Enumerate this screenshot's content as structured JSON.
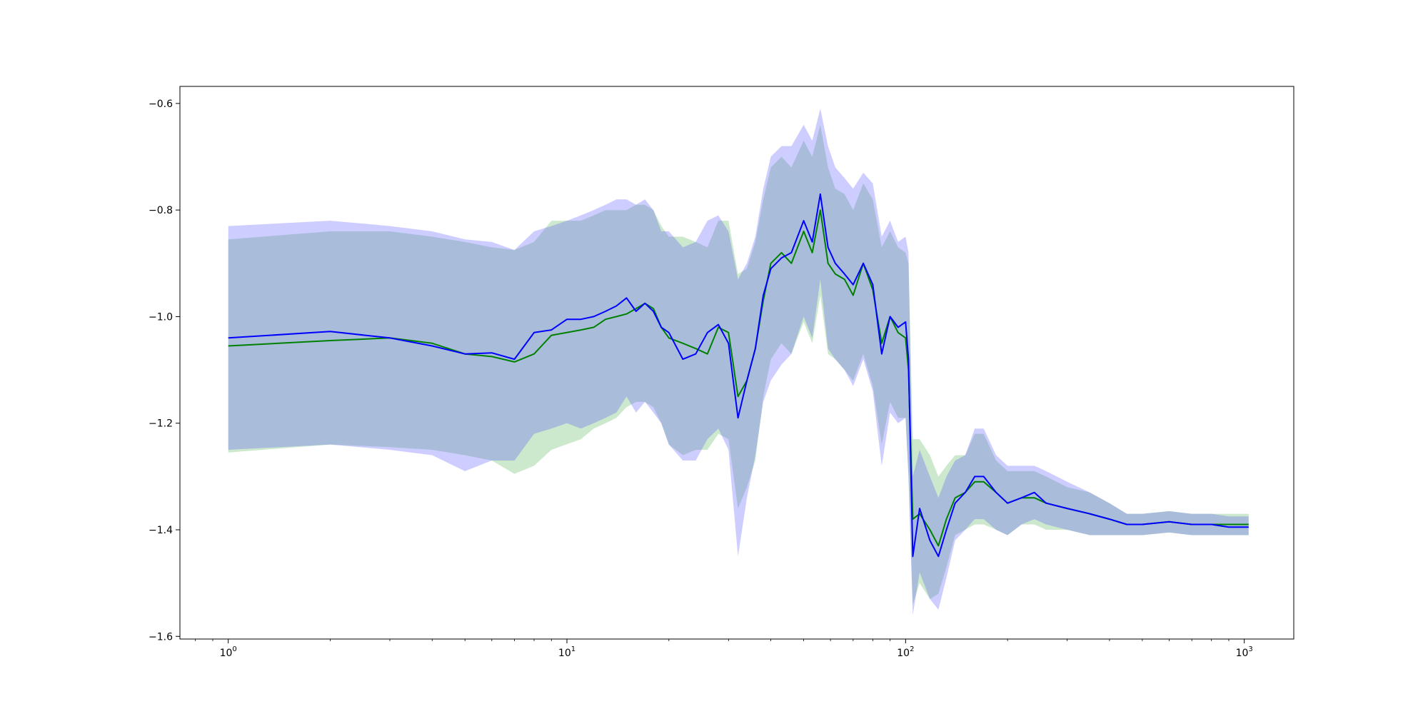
{
  "chart_data": {
    "type": "line",
    "title": "",
    "xlabel": "",
    "ylabel": "",
    "xscale": "log",
    "xlim": [
      0.72,
      1400
    ],
    "ylim": [
      -1.605,
      -0.568
    ],
    "grid": false,
    "legend": "none",
    "y_ticks": [
      {
        "value": -0.6,
        "label": "−0.6"
      },
      {
        "value": -0.8,
        "label": "−0.8"
      },
      {
        "value": -1.0,
        "label": "−1.0"
      },
      {
        "value": -1.2,
        "label": "−1.2"
      },
      {
        "value": -1.4,
        "label": "−1.4"
      },
      {
        "value": -1.6,
        "label": "−1.6"
      }
    ],
    "x_ticks": [
      {
        "value": 1,
        "base": "10",
        "exp": "0"
      },
      {
        "value": 10,
        "base": "10",
        "exp": "1"
      },
      {
        "value": 100,
        "base": "10",
        "exp": "2"
      },
      {
        "value": 1000,
        "base": "10",
        "exp": "3"
      }
    ],
    "series": [
      {
        "color": "#008000",
        "band_color": "#1a9a1a",
        "x": [
          1,
          2,
          3,
          4,
          5,
          6,
          7,
          8,
          9,
          11,
          12,
          13,
          14,
          15,
          16,
          17,
          18,
          19,
          20,
          22,
          24,
          26,
          28,
          30,
          32,
          34,
          36,
          38,
          40,
          43,
          46,
          50,
          53,
          56,
          59,
          62,
          66,
          70,
          75,
          80,
          85,
          90,
          95,
          100,
          102,
          105,
          110,
          118,
          125,
          132,
          140,
          150,
          160,
          170,
          185,
          200,
          220,
          240,
          260,
          300,
          350,
          400,
          450,
          500,
          600,
          700,
          800,
          900,
          1000,
          1030
        ],
        "y": [
          -1.055,
          -1.045,
          -1.04,
          -1.05,
          -1.07,
          -1.075,
          -1.085,
          -1.07,
          -1.035,
          -1.025,
          -1.02,
          -1.005,
          -1.0,
          -0.995,
          -0.985,
          -0.975,
          -0.985,
          -1.02,
          -1.04,
          -1.05,
          -1.06,
          -1.07,
          -1.02,
          -1.03,
          -1.15,
          -1.12,
          -1.06,
          -0.97,
          -0.9,
          -0.88,
          -0.9,
          -0.84,
          -0.88,
          -0.8,
          -0.9,
          -0.92,
          -0.93,
          -0.96,
          -0.9,
          -0.95,
          -1.05,
          -1.0,
          -1.03,
          -1.04,
          -1.1,
          -1.38,
          -1.37,
          -1.4,
          -1.43,
          -1.38,
          -1.34,
          -1.33,
          -1.31,
          -1.31,
          -1.33,
          -1.35,
          -1.34,
          -1.34,
          -1.35,
          -1.36,
          -1.37,
          -1.38,
          -1.39,
          -1.39,
          -1.385,
          -1.39,
          -1.39,
          -1.39,
          -1.39,
          -1.39
        ],
        "lower": [
          -1.255,
          -1.24,
          -1.245,
          -1.25,
          -1.26,
          -1.27,
          -1.295,
          -1.28,
          -1.25,
          -1.23,
          -1.21,
          -1.2,
          -1.19,
          -1.17,
          -1.16,
          -1.16,
          -1.17,
          -1.2,
          -1.24,
          -1.26,
          -1.25,
          -1.25,
          -1.22,
          -1.23,
          -1.36,
          -1.32,
          -1.27,
          -1.15,
          -1.08,
          -1.05,
          -1.07,
          -1.01,
          -1.05,
          -0.96,
          -1.07,
          -1.08,
          -1.1,
          -1.12,
          -1.07,
          -1.13,
          -1.24,
          -1.16,
          -1.19,
          -1.19,
          -1.3,
          -1.54,
          -1.5,
          -1.53,
          -1.52,
          -1.47,
          -1.41,
          -1.4,
          -1.39,
          -1.39,
          -1.4,
          -1.41,
          -1.39,
          -1.39,
          -1.4,
          -1.4,
          -1.41,
          -1.41,
          -1.41,
          -1.41,
          -1.405,
          -1.41,
          -1.41,
          -1.41,
          -1.41,
          -1.41
        ],
        "upper": [
          -0.855,
          -0.84,
          -0.84,
          -0.85,
          -0.86,
          -0.87,
          -0.875,
          -0.86,
          -0.82,
          -0.82,
          -0.81,
          -0.8,
          -0.8,
          -0.8,
          -0.79,
          -0.79,
          -0.8,
          -0.83,
          -0.85,
          -0.85,
          -0.86,
          -0.87,
          -0.82,
          -0.82,
          -0.92,
          -0.91,
          -0.86,
          -0.78,
          -0.72,
          -0.7,
          -0.72,
          -0.67,
          -0.7,
          -0.64,
          -0.72,
          -0.76,
          -0.77,
          -0.8,
          -0.75,
          -0.78,
          -0.87,
          -0.84,
          -0.87,
          -0.88,
          -0.9,
          -1.23,
          -1.23,
          -1.26,
          -1.3,
          -1.28,
          -1.26,
          -1.26,
          -1.22,
          -1.22,
          -1.27,
          -1.29,
          -1.29,
          -1.29,
          -1.3,
          -1.32,
          -1.33,
          -1.35,
          -1.37,
          -1.37,
          -1.365,
          -1.37,
          -1.37,
          -1.37,
          -1.37,
          -1.37
        ]
      },
      {
        "color": "#0000ff",
        "band_color": "#4a4aff",
        "x": [
          1,
          2,
          3,
          4,
          5,
          6,
          7,
          8,
          9,
          10,
          11,
          12,
          13,
          14,
          15,
          16,
          17,
          18,
          19,
          20,
          22,
          24,
          26,
          28,
          30,
          32,
          34,
          36,
          38,
          40,
          43,
          46,
          50,
          53,
          56,
          59,
          62,
          66,
          70,
          75,
          80,
          85,
          90,
          95,
          100,
          102,
          105,
          110,
          118,
          125,
          132,
          140,
          150,
          160,
          170,
          185,
          200,
          220,
          240,
          260,
          300,
          350,
          400,
          450,
          500,
          600,
          700,
          800,
          900,
          1000,
          1030
        ],
        "y": [
          -1.04,
          -1.028,
          -1.04,
          -1.055,
          -1.07,
          -1.068,
          -1.08,
          -1.03,
          -1.025,
          -1.005,
          -1.005,
          -1.0,
          -0.99,
          -0.98,
          -0.965,
          -0.99,
          -0.975,
          -0.99,
          -1.02,
          -1.03,
          -1.08,
          -1.07,
          -1.03,
          -1.015,
          -1.05,
          -1.19,
          -1.12,
          -1.06,
          -0.96,
          -0.91,
          -0.89,
          -0.88,
          -0.82,
          -0.86,
          -0.77,
          -0.87,
          -0.9,
          -0.92,
          -0.94,
          -0.9,
          -0.94,
          -1.07,
          -1.0,
          -1.02,
          -1.01,
          -1.08,
          -1.45,
          -1.36,
          -1.42,
          -1.45,
          -1.4,
          -1.35,
          -1.33,
          -1.3,
          -1.3,
          -1.33,
          -1.35,
          -1.34,
          -1.33,
          -1.35,
          -1.36,
          -1.37,
          -1.38,
          -1.39,
          -1.39,
          -1.385,
          -1.39,
          -1.39,
          -1.395,
          -1.395,
          -1.395
        ],
        "lower": [
          -1.25,
          -1.24,
          -1.25,
          -1.26,
          -1.29,
          -1.27,
          -1.27,
          -1.22,
          -1.21,
          -1.2,
          -1.21,
          -1.2,
          -1.19,
          -1.18,
          -1.15,
          -1.18,
          -1.16,
          -1.18,
          -1.2,
          -1.24,
          -1.27,
          -1.27,
          -1.23,
          -1.21,
          -1.25,
          -1.45,
          -1.34,
          -1.26,
          -1.16,
          -1.12,
          -1.09,
          -1.07,
          -1.0,
          -1.04,
          -0.93,
          -1.06,
          -1.08,
          -1.1,
          -1.13,
          -1.08,
          -1.14,
          -1.28,
          -1.18,
          -1.2,
          -1.19,
          -1.3,
          -1.56,
          -1.48,
          -1.53,
          -1.55,
          -1.49,
          -1.42,
          -1.4,
          -1.38,
          -1.38,
          -1.4,
          -1.41,
          -1.39,
          -1.38,
          -1.39,
          -1.4,
          -1.41,
          -1.41,
          -1.41,
          -1.41,
          -1.405,
          -1.41,
          -1.41,
          -1.41,
          -1.41,
          -1.41
        ],
        "upper": [
          -0.83,
          -0.82,
          -0.83,
          -0.84,
          -0.855,
          -0.86,
          -0.875,
          -0.84,
          -0.83,
          -0.82,
          -0.81,
          -0.8,
          -0.79,
          -0.78,
          -0.78,
          -0.79,
          -0.78,
          -0.8,
          -0.84,
          -0.84,
          -0.87,
          -0.86,
          -0.82,
          -0.81,
          -0.84,
          -0.93,
          -0.9,
          -0.85,
          -0.76,
          -0.7,
          -0.68,
          -0.68,
          -0.64,
          -0.67,
          -0.61,
          -0.68,
          -0.72,
          -0.74,
          -0.76,
          -0.73,
          -0.75,
          -0.85,
          -0.82,
          -0.86,
          -0.85,
          -0.88,
          -1.3,
          -1.25,
          -1.3,
          -1.34,
          -1.3,
          -1.27,
          -1.26,
          -1.21,
          -1.21,
          -1.26,
          -1.28,
          -1.28,
          -1.28,
          -1.29,
          -1.31,
          -1.33,
          -1.35,
          -1.37,
          -1.37,
          -1.365,
          -1.37,
          -1.37,
          -1.375,
          -1.375,
          -1.375
        ]
      }
    ]
  }
}
